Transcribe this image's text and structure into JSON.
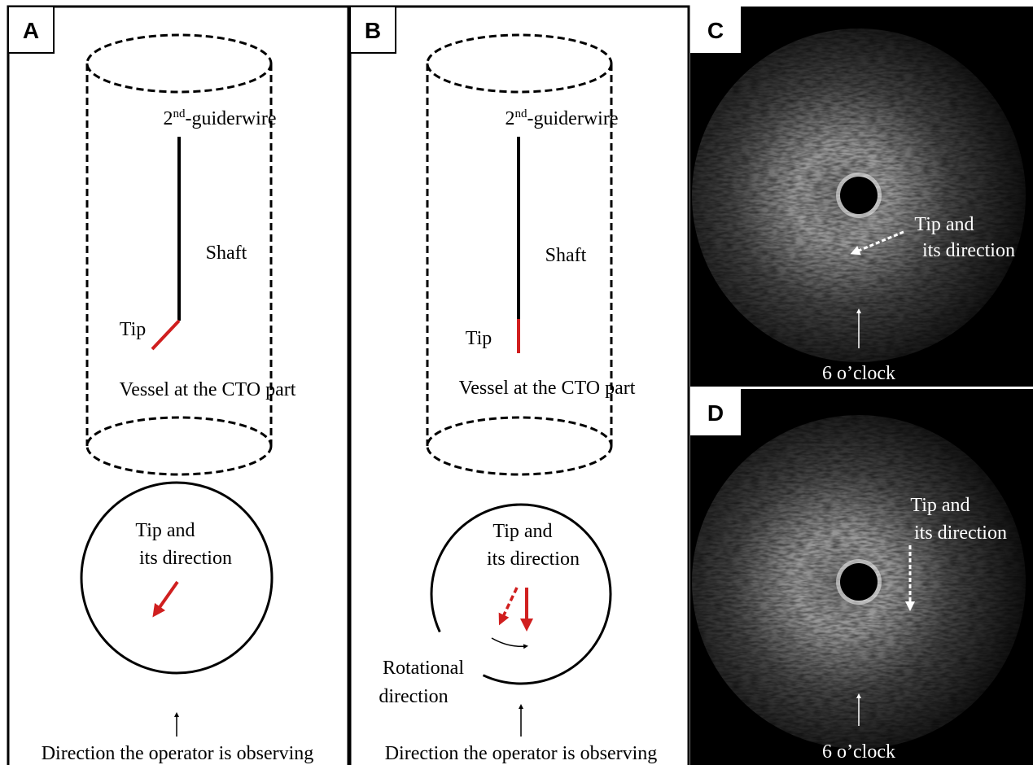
{
  "panels": [
    {
      "label": "A",
      "guidewire": {
        "number": "2",
        "superscript": "nd",
        "rest": "-guiderwire"
      },
      "shaft": "Shaft",
      "tip": "Tip",
      "vessel": "Vessel at the CTO part",
      "tip_direction": [
        "Tip and",
        "its direction"
      ],
      "observer": "Direction the operator is observing"
    },
    {
      "label": "B",
      "guidewire": {
        "number": "2",
        "superscript": "nd",
        "rest": "-guiderwire"
      },
      "shaft": "Shaft",
      "tip": "Tip",
      "vessel": "Vessel at the CTO part",
      "tip_direction": [
        "Tip and",
        "its direction"
      ],
      "rotation": [
        "Rotational",
        "direction"
      ],
      "observer": "Direction the operator is observing"
    },
    {
      "label": "C",
      "tip_direction": [
        "Tip and",
        "its direction"
      ],
      "clock": "6 o’clock"
    },
    {
      "label": "D",
      "tip_direction": [
        "Tip and",
        "its direction"
      ],
      "clock": "6 o’clock"
    }
  ]
}
